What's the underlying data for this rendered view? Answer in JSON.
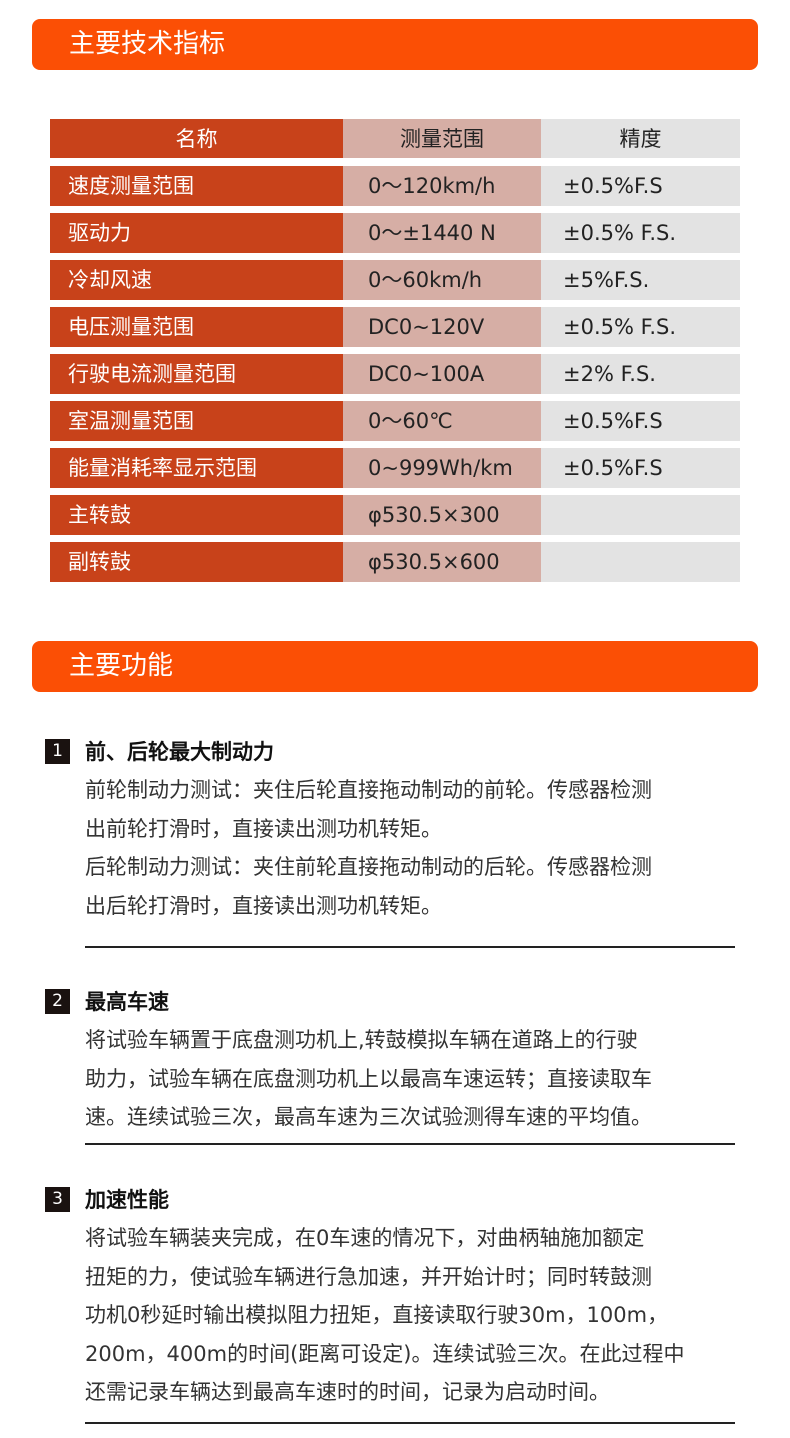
{
  "section1": {
    "title": "主要技术指标"
  },
  "table": {
    "headers": [
      "名称",
      "测量范围",
      "精度"
    ],
    "rows": [
      [
        "速度测量范围",
        "0～120km/h",
        "±0.5%F.S"
      ],
      [
        "驱动力",
        "0～±1440 N",
        "±0.5% F.S."
      ],
      [
        "冷却风速",
        "0～60km/h",
        "±5%F.S."
      ],
      [
        "电压测量范围",
        "DC0~120V",
        "±0.5% F.S."
      ],
      [
        "行驶电流测量范围",
        "DC0~100A",
        "±2% F.S."
      ],
      [
        "室温测量范围",
        "0～60℃",
        "±0.5%F.S"
      ],
      [
        "能量消耗率显示范围",
        "0~999Wh/km",
        "±0.5%F.S"
      ],
      [
        "主转鼓",
        "φ530.5×300",
        ""
      ],
      [
        "副转鼓",
        "φ530.5×600",
        ""
      ]
    ]
  },
  "section2": {
    "title": "主要功能"
  },
  "functions": [
    {
      "num": "1",
      "title": "前、后轮最大制动力",
      "lines": [
        "前轮制动力测试：夹住后轮直接拖动制动的前轮。传感器检测",
        "出前轮打滑时，直接读出测功机转矩。",
        "后轮制动力测试：夹住前轮直接拖动制动的后轮。传感器检测",
        "出后轮打滑时，直接读出测功机转矩。"
      ]
    },
    {
      "num": "2",
      "title": "最高车速",
      "lines": [
        "将试验车辆置于底盘测功机上,转鼓模拟车辆在道路上的行驶",
        "助力，试验车辆在底盘测功机上以最高车速运转；直接读取车",
        "速。连续试验三次，最高车速为三次试验测得车速的平均值。"
      ]
    },
    {
      "num": "3",
      "title": "加速性能",
      "lines": [
        "将试验车辆装夹完成，在0车速的情况下，对曲柄轴施加额定",
        "扭矩的力，使试验车辆进行急加速，并开始计时；同时转鼓测",
        "功机0秒延时输出模拟阻力扭矩，直接读取行驶30m，100m，",
        "200m，400m的时间(距离可设定)。连续试验三次。在此过程中",
        "还需记录车辆达到最高车速时的时间，记录为启动时间。"
      ]
    }
  ]
}
